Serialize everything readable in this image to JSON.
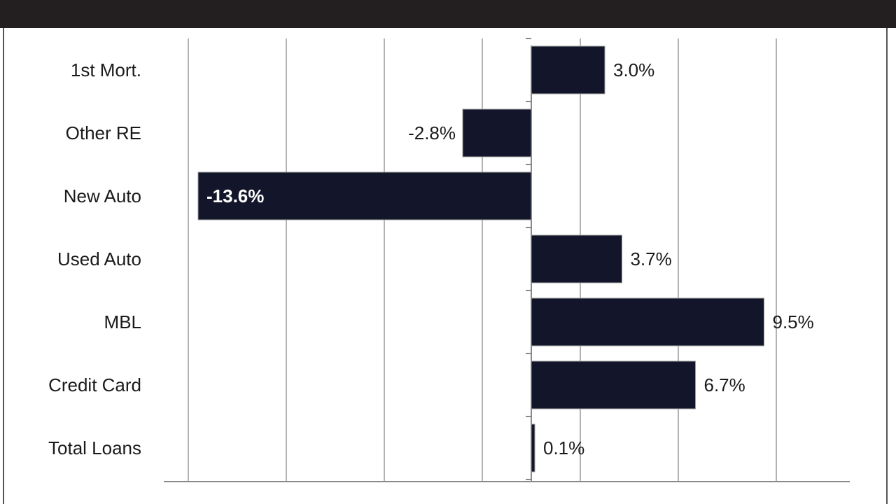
{
  "chart_data": {
    "type": "bar",
    "orientation": "horizontal",
    "title": "",
    "categories": [
      "1st Mort.",
      "Other RE",
      "New Auto",
      "Used Auto",
      "MBL",
      "Credit Card",
      "Total Loans"
    ],
    "values": [
      3.0,
      -2.8,
      -13.6,
      3.7,
      9.5,
      6.7,
      0.1
    ],
    "value_labels": [
      "3.0%",
      "-2.8%",
      "-13.6%",
      "3.7%",
      "9.5%",
      "6.7%",
      "0.1%"
    ],
    "xlim": [
      -15,
      13
    ],
    "xlabel": "",
    "ylabel": "",
    "grid": true,
    "bar_color": "#13152b",
    "title_bar_color": "#231f20"
  }
}
